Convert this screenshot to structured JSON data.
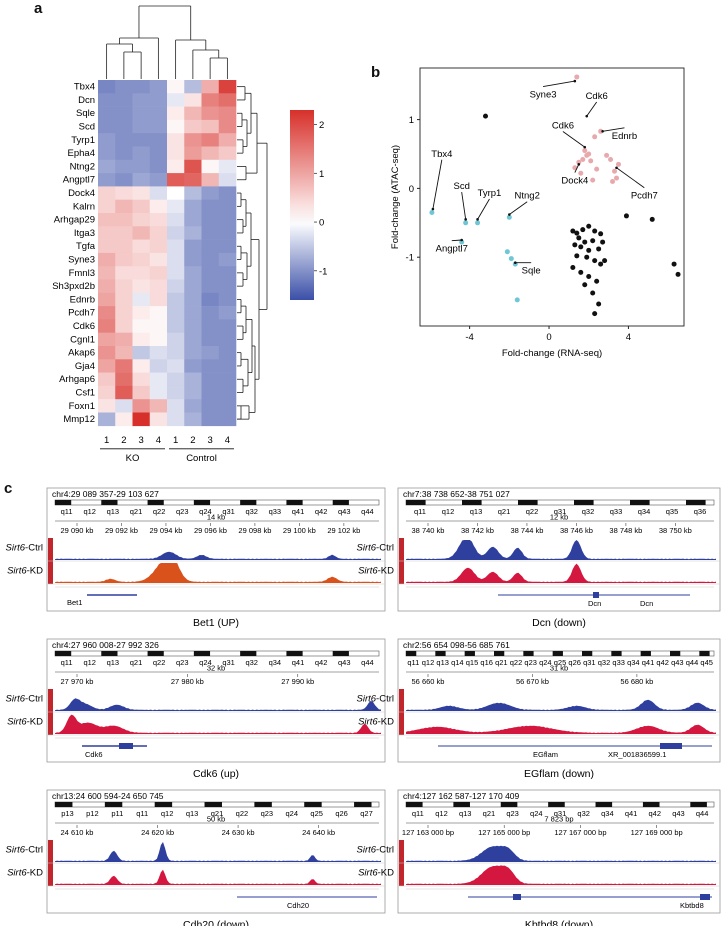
{
  "panel_labels": {
    "a": "a",
    "b": "b",
    "c": "c"
  },
  "heatmap": {
    "rows": [
      "Tbx4",
      "Dcn",
      "Sqle",
      "Scd",
      "Tyrp1",
      "Epha4",
      "Ntng2",
      "Angptl7",
      "Dock4",
      "Kalrn",
      "Arhgap29",
      "Itga3",
      "Tgfa",
      "Syne3",
      "Fmnl3",
      "Sh3pxd2b",
      "Ednrb",
      "Pcdh7",
      "Cdk6",
      "Cgnl1",
      "Akap6",
      "Gja4",
      "Arhgap6",
      "Csf1",
      "Foxn1",
      "Mmp12"
    ],
    "columns": [
      "1",
      "2",
      "3",
      "4",
      "1",
      "2",
      "3",
      "4"
    ],
    "groups": [
      "KO",
      "Control"
    ],
    "colorbar_ticks": [
      "2",
      "1",
      "0",
      "-1"
    ],
    "colorbar_range": [
      -1.6,
      2.3
    ],
    "colors": {
      "low": "#3a4fa8",
      "mid": "#ffffff",
      "high": "#d7302a"
    },
    "values": [
      [
        -1.1,
        -1.0,
        -1.0,
        -0.9,
        0.1,
        -0.6,
        0.9,
        2.1
      ],
      [
        -1.0,
        -1.0,
        -0.9,
        -0.9,
        -0.2,
        0.3,
        1.4,
        1.6
      ],
      [
        -1.0,
        -1.0,
        -0.9,
        -0.9,
        0.2,
        0.8,
        1.2,
        1.3
      ],
      [
        -1.0,
        -1.0,
        -0.9,
        -0.9,
        0.1,
        0.6,
        0.7,
        1.3
      ],
      [
        -0.9,
        -1.0,
        -1.0,
        -1.0,
        0.3,
        1.2,
        1.4,
        0.9
      ],
      [
        -0.9,
        -1.0,
        -0.9,
        -1.0,
        0.3,
        1.1,
        0.8,
        0.6
      ],
      [
        -0.8,
        -0.9,
        -0.9,
        -1.0,
        0.2,
        1.9,
        0.1,
        -0.2
      ],
      [
        -0.9,
        -1.0,
        -0.8,
        -0.9,
        1.8,
        1.7,
        0.8,
        -0.3
      ],
      [
        0.5,
        0.4,
        0.3,
        -0.3,
        0.0,
        -0.6,
        -0.9,
        -1.0
      ],
      [
        0.5,
        0.8,
        0.6,
        0.2,
        -0.2,
        -0.8,
        -1.0,
        -1.0
      ],
      [
        0.7,
        0.7,
        0.5,
        0.4,
        -0.3,
        -0.8,
        -1.0,
        -1.0
      ],
      [
        0.6,
        0.6,
        0.8,
        0.5,
        -0.4,
        -0.7,
        -1.0,
        -1.0
      ],
      [
        0.6,
        0.6,
        0.4,
        0.5,
        -0.3,
        -0.9,
        -1.0,
        -1.0
      ],
      [
        0.9,
        0.6,
        0.5,
        0.3,
        -0.3,
        -0.9,
        -1.0,
        -0.9
      ],
      [
        0.8,
        0.4,
        0.4,
        0.5,
        -0.3,
        -0.8,
        -1.0,
        -1.0
      ],
      [
        0.9,
        0.5,
        0.3,
        0.4,
        -0.4,
        -0.8,
        -1.0,
        -1.0
      ],
      [
        1.0,
        0.5,
        -0.2,
        0.4,
        -0.5,
        -0.8,
        -1.1,
        -1.0
      ],
      [
        1.3,
        0.5,
        0.2,
        0.1,
        -0.5,
        -0.8,
        -1.0,
        -0.9
      ],
      [
        1.4,
        0.5,
        0.1,
        0.1,
        -0.5,
        -0.8,
        -1.0,
        -1.0
      ],
      [
        1.0,
        0.9,
        0.2,
        0.1,
        -0.4,
        -0.8,
        -1.0,
        -1.0
      ],
      [
        1.2,
        0.8,
        -0.5,
        -0.3,
        -0.4,
        -0.8,
        -0.9,
        -1.0
      ],
      [
        1.0,
        1.5,
        0.2,
        -0.4,
        -0.3,
        -0.9,
        -1.0,
        -1.0
      ],
      [
        0.6,
        1.6,
        0.4,
        -0.2,
        -0.4,
        -0.7,
        -1.0,
        -1.0
      ],
      [
        0.5,
        1.8,
        0.6,
        -0.2,
        -0.4,
        -0.7,
        -1.0,
        -1.0
      ],
      [
        0.3,
        -0.3,
        1.2,
        0.8,
        -0.3,
        -0.8,
        -1.0,
        -1.0
      ],
      [
        -0.7,
        0.2,
        2.3,
        0.3,
        -0.3,
        -0.7,
        -1.0,
        -1.0
      ]
    ]
  },
  "chart_data": {
    "type": "scatter",
    "xlabel": "Fold-change (RNA-seq)",
    "ylabel": "Fold-change (ATAC-seq)",
    "xlim": [
      -6.5,
      6.8
    ],
    "ylim": [
      -2.0,
      1.75
    ],
    "xticks": [
      "-4",
      "0",
      "4"
    ],
    "xtick_values": [
      -4,
      0,
      4
    ],
    "yticks": [
      "1",
      "0",
      "-1"
    ],
    "ytick_values": [
      1,
      0,
      -1
    ],
    "series": [
      {
        "color": "#e8a9ad",
        "points": [
          [
            1.4,
            1.62
          ],
          [
            2.3,
            0.75
          ],
          [
            2.6,
            0.83
          ],
          [
            1.8,
            0.55
          ],
          [
            2.0,
            0.5
          ],
          [
            1.9,
            0.48
          ],
          [
            1.7,
            0.42
          ],
          [
            2.1,
            0.4
          ],
          [
            1.5,
            0.38
          ],
          [
            1.3,
            0.3
          ],
          [
            2.9,
            0.48
          ],
          [
            3.1,
            0.42
          ],
          [
            3.5,
            0.35
          ],
          [
            3.3,
            0.25
          ],
          [
            2.4,
            0.28
          ],
          [
            1.6,
            0.22
          ],
          [
            2.2,
            0.12
          ],
          [
            3.4,
            0.15
          ],
          [
            3.2,
            0.1
          ]
        ]
      },
      {
        "color": "#6fc7d6",
        "points": [
          [
            -5.9,
            -0.35
          ],
          [
            -4.2,
            -0.5
          ],
          [
            -3.6,
            -0.5
          ],
          [
            -4.4,
            -0.78
          ],
          [
            -2.0,
            -0.42
          ],
          [
            -2.1,
            -0.92
          ],
          [
            -1.9,
            -1.02
          ],
          [
            -1.7,
            -1.1
          ],
          [
            -1.6,
            -1.62
          ]
        ]
      },
      {
        "color": "#111111",
        "points": [
          [
            -3.2,
            1.05
          ],
          [
            1.2,
            -0.62
          ],
          [
            1.4,
            -0.65
          ],
          [
            1.7,
            -0.6
          ],
          [
            2.0,
            -0.55
          ],
          [
            2.3,
            -0.62
          ],
          [
            2.6,
            -0.66
          ],
          [
            1.5,
            -0.72
          ],
          [
            1.8,
            -0.78
          ],
          [
            2.2,
            -0.76
          ],
          [
            2.7,
            -0.78
          ],
          [
            1.3,
            -0.82
          ],
          [
            1.6,
            -0.85
          ],
          [
            2.0,
            -0.9
          ],
          [
            2.5,
            -0.88
          ],
          [
            1.4,
            -0.98
          ],
          [
            1.9,
            -1.0
          ],
          [
            2.3,
            -1.05
          ],
          [
            2.6,
            -1.1
          ],
          [
            1.2,
            -1.15
          ],
          [
            1.6,
            -1.22
          ],
          [
            2.0,
            -1.28
          ],
          [
            2.4,
            -1.35
          ],
          [
            1.8,
            -1.4
          ],
          [
            2.2,
            -1.52
          ],
          [
            2.5,
            -1.68
          ],
          [
            2.3,
            -1.82
          ],
          [
            3.9,
            -0.4
          ],
          [
            5.2,
            -0.45
          ],
          [
            6.3,
            -1.1
          ],
          [
            6.5,
            -1.25
          ],
          [
            2.8,
            -1.05
          ]
        ]
      }
    ],
    "annotations": [
      "Syne3",
      "Cdk6",
      "Cdk6",
      "Ednrb",
      "Dock4",
      "Pcdh7",
      "Tbx4",
      "Scd",
      "Tyrp1",
      "Ntng2",
      "Angptl7",
      "Sqle"
    ]
  },
  "tracks": {
    "row_labels": {
      "ctrl_gene": "Sirt6",
      "ctrl_suffix": "-Ctrl",
      "kd_gene": "Sirt6",
      "kd_suffix": "-KD"
    },
    "colors": {
      "ctrl": "#2f3f9e",
      "kd": "#d4173e",
      "kd_bet1": "#d9521c"
    },
    "panels": [
      {
        "title": "chr4:29 089 357-29 103 627",
        "bands": [
          "q11",
          "q12",
          "q13",
          "q21",
          "q22",
          "q23",
          "q24",
          "q31",
          "q32",
          "q33",
          "q41",
          "q42",
          "q43",
          "q44"
        ],
        "scale": "14 kb",
        "coords": [
          "29 090 kb",
          "29 092 kb",
          "29 094 kb",
          "29 096 kb",
          "29 098 kb",
          "29 100 kb",
          "29 102 kb"
        ],
        "genes": [
          "Bet1"
        ],
        "caption": "Bet1 (UP)"
      },
      {
        "title": "chr7:38 738 652-38 751 027",
        "bands": [
          "q11",
          "q12",
          "q13",
          "q21",
          "q22",
          "q31",
          "q32",
          "q33",
          "q34",
          "q35",
          "q36"
        ],
        "scale": "12 kb",
        "coords": [
          "38 740 kb",
          "38 742 kb",
          "38 744 kb",
          "38 746 kb",
          "38 748 kb",
          "38 750 kb"
        ],
        "genes": [
          "Dcn",
          "Dcn"
        ],
        "caption": "Dcn (down)"
      },
      {
        "title": "chr4:27 960 008-27 992 326",
        "bands": [
          "q11",
          "q12",
          "q13",
          "q21",
          "q22",
          "q23",
          "q24",
          "q31",
          "q32",
          "q34",
          "q41",
          "q42",
          "q43",
          "q44"
        ],
        "scale": "32 kb",
        "coords": [
          "27 970 kb",
          "27 980 kb",
          "27 990 kb"
        ],
        "genes": [
          "Cdk6"
        ],
        "caption": "Cdk6 (up)"
      },
      {
        "title": "chr2:56 654 098-56 685 761",
        "bands": [
          "q11",
          "q12",
          "q13",
          "q14",
          "q15",
          "q16",
          "q21",
          "q22",
          "q23",
          "q24",
          "q25",
          "q26",
          "q31",
          "q32",
          "q33",
          "q34",
          "q41",
          "q42",
          "q43",
          "q44",
          "q45"
        ],
        "scale": "31 kb",
        "coords": [
          "56 660 kb",
          "56 670 kb",
          "56 680 kb"
        ],
        "genes": [
          "EGflam",
          "XR_001836599.1"
        ],
        "caption": "EGflam (down)"
      },
      {
        "title": "chr13:24 600 594-24 650 745",
        "bands": [
          "p13",
          "p12",
          "p11",
          "q11",
          "q12",
          "q13",
          "q21",
          "q22",
          "q23",
          "q24",
          "q25",
          "q26",
          "q27"
        ],
        "scale": "50 kb",
        "coords": [
          "24 610 kb",
          "24 620 kb",
          "24 630 kb",
          "24 640 kb"
        ],
        "genes": [
          "Cdh20"
        ],
        "caption": "Cdh20 (down)"
      },
      {
        "title": "chr4:127 162 587-127 170 409",
        "bands": [
          "q11",
          "q12",
          "q13",
          "q21",
          "q23",
          "q24",
          "q31",
          "q32",
          "q34",
          "q41",
          "q42",
          "q43",
          "q44"
        ],
        "scale": "7 823 bp",
        "coords": [
          "127 163 000 bp",
          "127 165 000 bp",
          "127 167 000 bp",
          "127 169 000 bp"
        ],
        "genes": [
          "Kbtbd8"
        ],
        "caption": "Kbtbd8 (down)"
      }
    ]
  }
}
